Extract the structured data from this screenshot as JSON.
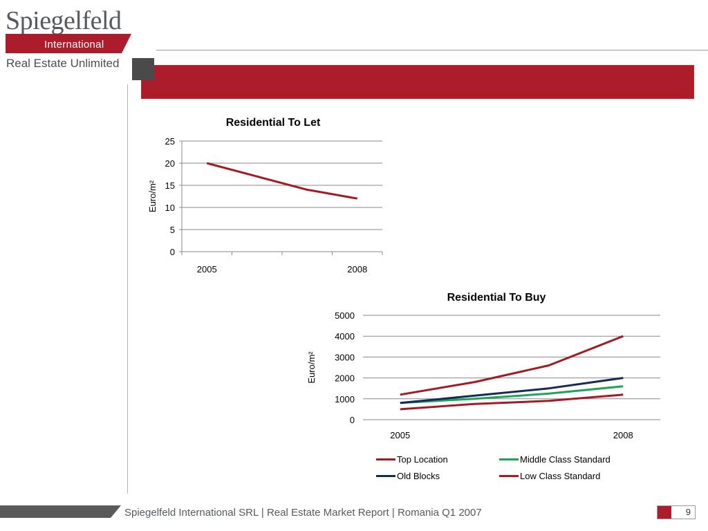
{
  "brand": {
    "name": "Spiegelfeld",
    "sub": "International",
    "tagline": "Real Estate Unlimited",
    "colors": {
      "red": "#ad1c2b",
      "gray": "#555a5e"
    }
  },
  "footer": {
    "text": "Spiegelfeld International SRL | Real Estate Market Report | Romania Q1 2007",
    "page_number": "9"
  },
  "chart_data": [
    {
      "type": "line",
      "title": "Residential To Let",
      "ylabel": "Euro/m²",
      "xlabel": "",
      "x_tick_labels": [
        "2005",
        "2008"
      ],
      "x": [
        0,
        1,
        2,
        3
      ],
      "ylim": [
        0,
        25
      ],
      "yticks": [
        0,
        5,
        10,
        15,
        20,
        25
      ],
      "grid": true,
      "series": [
        {
          "values": [
            20,
            17,
            14,
            12
          ],
          "color": "#a31a22"
        }
      ]
    },
    {
      "type": "line",
      "title": "Residential To Buy",
      "ylabel": "Euro/m²",
      "xlabel": "",
      "x_tick_labels": [
        "2005",
        "2008"
      ],
      "x": [
        0,
        1,
        2,
        3
      ],
      "ylim": [
        0,
        5000
      ],
      "yticks": [
        0,
        1000,
        2000,
        3000,
        4000,
        5000
      ],
      "grid": true,
      "legend": "bottom",
      "series": [
        {
          "name": "Top Location",
          "values": [
            1200,
            1800,
            2600,
            4000
          ],
          "color": "#a31a22"
        },
        {
          "name": "Middle Class Standard",
          "values": [
            800,
            1000,
            1250,
            1600
          ],
          "color": "#1fa25a"
        },
        {
          "name": "Old Blocks",
          "values": [
            800,
            1150,
            1500,
            2000
          ],
          "color": "#152a56"
        },
        {
          "name": "Low Class Standard",
          "values": [
            500,
            750,
            900,
            1200
          ],
          "color": "#a31a22"
        }
      ]
    }
  ]
}
